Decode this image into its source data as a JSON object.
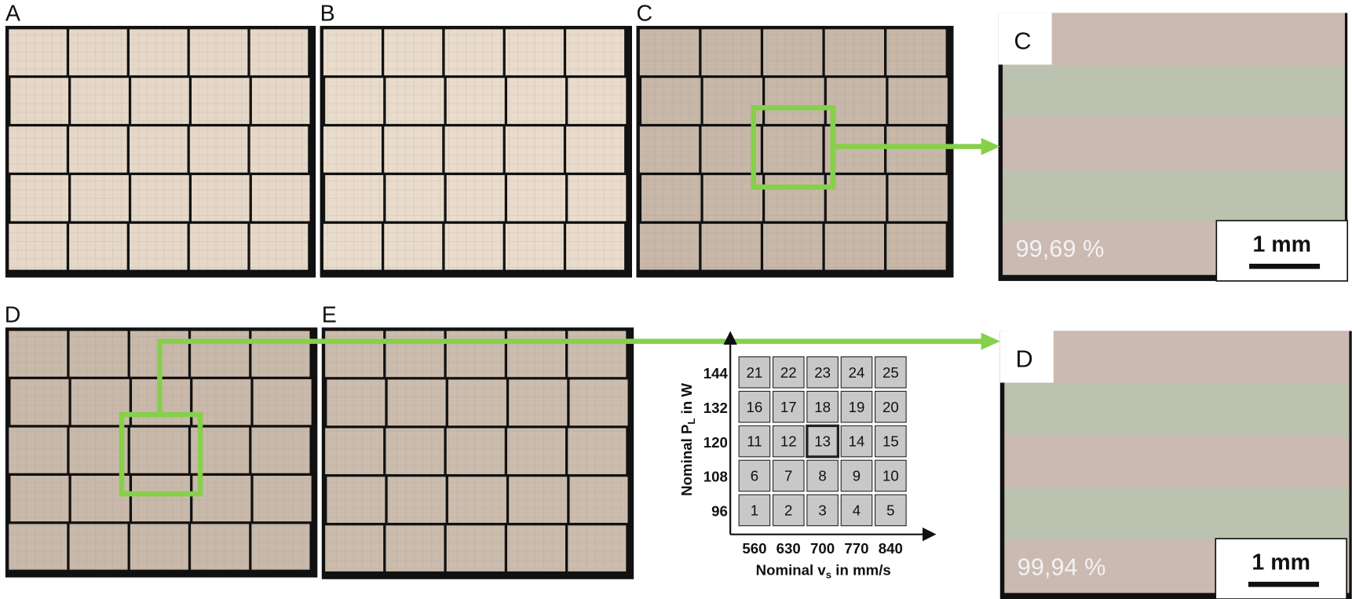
{
  "panels": [
    "A",
    "B",
    "C",
    "D",
    "E"
  ],
  "zooms": [
    {
      "label": "C",
      "density": "99,69 %",
      "scale": "1 mm"
    },
    {
      "label": "D",
      "density": "99,94 %",
      "scale": "1 mm"
    }
  ],
  "parameter_map": {
    "cells": [
      [
        21,
        22,
        23,
        24,
        25
      ],
      [
        16,
        17,
        18,
        19,
        20
      ],
      [
        11,
        12,
        13,
        14,
        15
      ],
      [
        6,
        7,
        8,
        9,
        10
      ],
      [
        1,
        2,
        3,
        4,
        5
      ]
    ],
    "highlighted_cell": 13,
    "y_ticks": [
      144,
      132,
      120,
      108,
      96
    ],
    "x_ticks": [
      560,
      630,
      700,
      770,
      840
    ],
    "y_label": {
      "text": "Nominal P",
      "sub": "L",
      "rest": " in W"
    },
    "x_label": {
      "text": "Nominal v",
      "sub": "s",
      "rest": " in mm/s"
    }
  }
}
